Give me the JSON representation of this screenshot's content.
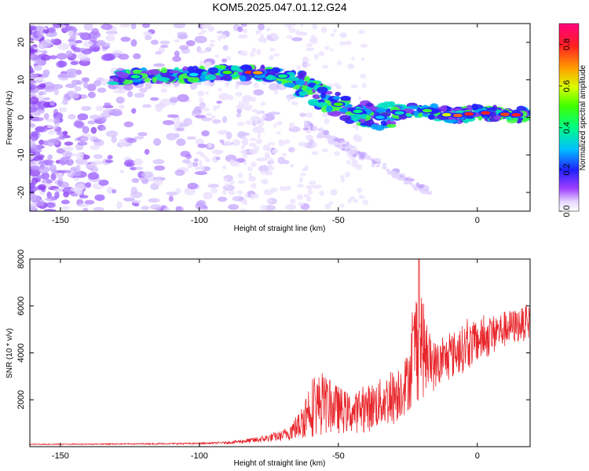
{
  "title": "KOM5.2025.047.01.12.G24",
  "chart_data": [
    {
      "type": "heatmap",
      "xlabel": "Height of straight line (km)",
      "ylabel": "Frequency (Hz)",
      "xlim": [
        -161,
        19
      ],
      "ylim": [
        -25,
        25
      ],
      "xticks": [
        -150,
        -100,
        -50,
        0
      ],
      "yticks": [
        -20,
        -10,
        0,
        10,
        20
      ],
      "colorbar": {
        "label": "Normalized spectral amplitude",
        "range": [
          0.0,
          0.9
        ],
        "ticks": [
          0.0,
          0.2,
          0.4,
          0.6,
          0.8
        ]
      },
      "ridge": [
        {
          "x": -130,
          "y": 10.5
        },
        {
          "x": -120,
          "y": 11
        },
        {
          "x": -110,
          "y": 11
        },
        {
          "x": -100,
          "y": 11.5
        },
        {
          "x": -90,
          "y": 12
        },
        {
          "x": -80,
          "y": 12
        },
        {
          "x": -70,
          "y": 11
        },
        {
          "x": -65,
          "y": 9.5
        },
        {
          "x": -60,
          "y": 7
        },
        {
          "x": -55,
          "y": 5
        },
        {
          "x": -50,
          "y": 3.5
        },
        {
          "x": -45,
          "y": 2
        },
        {
          "x": -40,
          "y": 1
        },
        {
          "x": -35,
          "y": 0
        },
        {
          "x": -30,
          "y": 1
        },
        {
          "x": -25,
          "y": 1.5
        },
        {
          "x": -20,
          "y": 2
        },
        {
          "x": -15,
          "y": 1.5
        },
        {
          "x": -10,
          "y": 0.5
        },
        {
          "x": -5,
          "y": 0.5
        },
        {
          "x": 0,
          "y": 1.5
        },
        {
          "x": 5,
          "y": 1
        },
        {
          "x": 10,
          "y": 0.8
        },
        {
          "x": 19,
          "y": 0.5
        }
      ]
    },
    {
      "type": "line",
      "xlabel": "Height of straight line (km)",
      "ylabel": "SNR (10 * v/v)",
      "xlim": [
        -161,
        19
      ],
      "ylim": [
        0,
        8000
      ],
      "xticks": [
        -150,
        -100,
        -50,
        0
      ],
      "yticks": [
        2000,
        4000,
        6000,
        8000
      ],
      "color": "#e8252a",
      "envelope": [
        {
          "x": -161,
          "y": 120
        },
        {
          "x": -140,
          "y": 130
        },
        {
          "x": -120,
          "y": 150
        },
        {
          "x": -100,
          "y": 170
        },
        {
          "x": -90,
          "y": 220
        },
        {
          "x": -80,
          "y": 400
        },
        {
          "x": -70,
          "y": 700
        },
        {
          "x": -64,
          "y": 1500
        },
        {
          "x": -60,
          "y": 3000
        },
        {
          "x": -56,
          "y": 3100
        },
        {
          "x": -50,
          "y": 2600
        },
        {
          "x": -45,
          "y": 2200
        },
        {
          "x": -40,
          "y": 2600
        },
        {
          "x": -35,
          "y": 2900
        },
        {
          "x": -30,
          "y": 3300
        },
        {
          "x": -25,
          "y": 4000
        },
        {
          "x": -21,
          "y": 7800
        },
        {
          "x": -18,
          "y": 4800
        },
        {
          "x": -14,
          "y": 4400
        },
        {
          "x": -10,
          "y": 4800
        },
        {
          "x": -5,
          "y": 5200
        },
        {
          "x": 0,
          "y": 5400
        },
        {
          "x": 5,
          "y": 5600
        },
        {
          "x": 10,
          "y": 5800
        },
        {
          "x": 15,
          "y": 5900
        },
        {
          "x": 19,
          "y": 6000
        }
      ],
      "baseline": [
        {
          "x": -161,
          "y": 80
        },
        {
          "x": -100,
          "y": 100
        },
        {
          "x": -80,
          "y": 150
        },
        {
          "x": -64,
          "y": 300
        },
        {
          "x": -55,
          "y": 500
        },
        {
          "x": -40,
          "y": 600
        },
        {
          "x": -30,
          "y": 900
        },
        {
          "x": -20,
          "y": 2000
        },
        {
          "x": -10,
          "y": 2800
        },
        {
          "x": 0,
          "y": 3500
        },
        {
          "x": 10,
          "y": 4200
        },
        {
          "x": 19,
          "y": 4600
        }
      ]
    }
  ]
}
